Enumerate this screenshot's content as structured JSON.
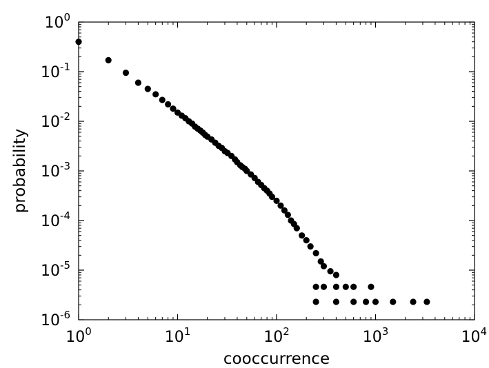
{
  "chart_data": {
    "type": "scatter",
    "title": "",
    "xlabel": "cooccurrence",
    "ylabel": "probability",
    "xscale": "log",
    "yscale": "log",
    "xlim": [
      1,
      10000
    ],
    "ylim": [
      1e-06,
      1
    ],
    "grid": false,
    "legend": "none",
    "marker_color": "#000000",
    "x_ticks": [
      {
        "value": 1,
        "base": "10",
        "exp": "0"
      },
      {
        "value": 10,
        "base": "10",
        "exp": "1"
      },
      {
        "value": 100,
        "base": "10",
        "exp": "2"
      },
      {
        "value": 1000,
        "base": "10",
        "exp": "3"
      },
      {
        "value": 10000,
        "base": "10",
        "exp": "4"
      }
    ],
    "y_ticks": [
      {
        "value": 1,
        "base": "10",
        "exp": "0"
      },
      {
        "value": 0.1,
        "base": "10",
        "exp": "-1"
      },
      {
        "value": 0.01,
        "base": "10",
        "exp": "-2"
      },
      {
        "value": 0.001,
        "base": "10",
        "exp": "-3"
      },
      {
        "value": 0.0001,
        "base": "10",
        "exp": "-4"
      },
      {
        "value": 1e-05,
        "base": "10",
        "exp": "-5"
      },
      {
        "value": 1e-06,
        "base": "10",
        "exp": "-6"
      }
    ],
    "points": [
      [
        1,
        0.4
      ],
      [
        2,
        0.17
      ],
      [
        3,
        0.095
      ],
      [
        4,
        0.06
      ],
      [
        5,
        0.045
      ],
      [
        6,
        0.035
      ],
      [
        7,
        0.027
      ],
      [
        8,
        0.022
      ],
      [
        9,
        0.018
      ],
      [
        10,
        0.015
      ],
      [
        11,
        0.013
      ],
      [
        12,
        0.0115
      ],
      [
        13,
        0.01
      ],
      [
        14,
        0.009
      ],
      [
        15,
        0.0078
      ],
      [
        16,
        0.0071
      ],
      [
        17,
        0.0065
      ],
      [
        18,
        0.0059
      ],
      [
        19,
        0.0053
      ],
      [
        20,
        0.0049
      ],
      [
        22,
        0.0043
      ],
      [
        24,
        0.0037
      ],
      [
        26,
        0.0032
      ],
      [
        28,
        0.0029
      ],
      [
        30,
        0.0025
      ],
      [
        32,
        0.0023
      ],
      [
        35,
        0.002
      ],
      [
        38,
        0.0017
      ],
      [
        40,
        0.0015
      ],
      [
        43,
        0.0013
      ],
      [
        45,
        0.0012
      ],
      [
        48,
        0.0011
      ],
      [
        50,
        0.001
      ],
      [
        55,
        0.00085
      ],
      [
        60,
        0.00072
      ],
      [
        65,
        0.0006
      ],
      [
        70,
        0.00052
      ],
      [
        75,
        0.00045
      ],
      [
        80,
        0.0004
      ],
      [
        85,
        0.00035
      ],
      [
        90,
        0.0003
      ],
      [
        100,
        0.00025
      ],
      [
        110,
        0.0002
      ],
      [
        120,
        0.00016
      ],
      [
        130,
        0.00013
      ],
      [
        140,
        0.0001
      ],
      [
        150,
        8.5e-05
      ],
      [
        160,
        7e-05
      ],
      [
        180,
        5e-05
      ],
      [
        200,
        4e-05
      ],
      [
        220,
        3e-05
      ],
      [
        250,
        2.2e-05
      ],
      [
        280,
        1.5e-05
      ],
      [
        300,
        1.2e-05
      ],
      [
        350,
        9.5e-06
      ],
      [
        400,
        8e-06
      ],
      [
        250,
        4.6e-06
      ],
      [
        300,
        4.6e-06
      ],
      [
        400,
        4.6e-06
      ],
      [
        500,
        4.6e-06
      ],
      [
        600,
        4.6e-06
      ],
      [
        900,
        4.6e-06
      ],
      [
        250,
        2.3e-06
      ],
      [
        400,
        2.3e-06
      ],
      [
        600,
        2.3e-06
      ],
      [
        800,
        2.3e-06
      ],
      [
        1000,
        2.3e-06
      ],
      [
        1500,
        2.3e-06
      ],
      [
        2400,
        2.3e-06
      ],
      [
        3300,
        2.3e-06
      ]
    ]
  }
}
